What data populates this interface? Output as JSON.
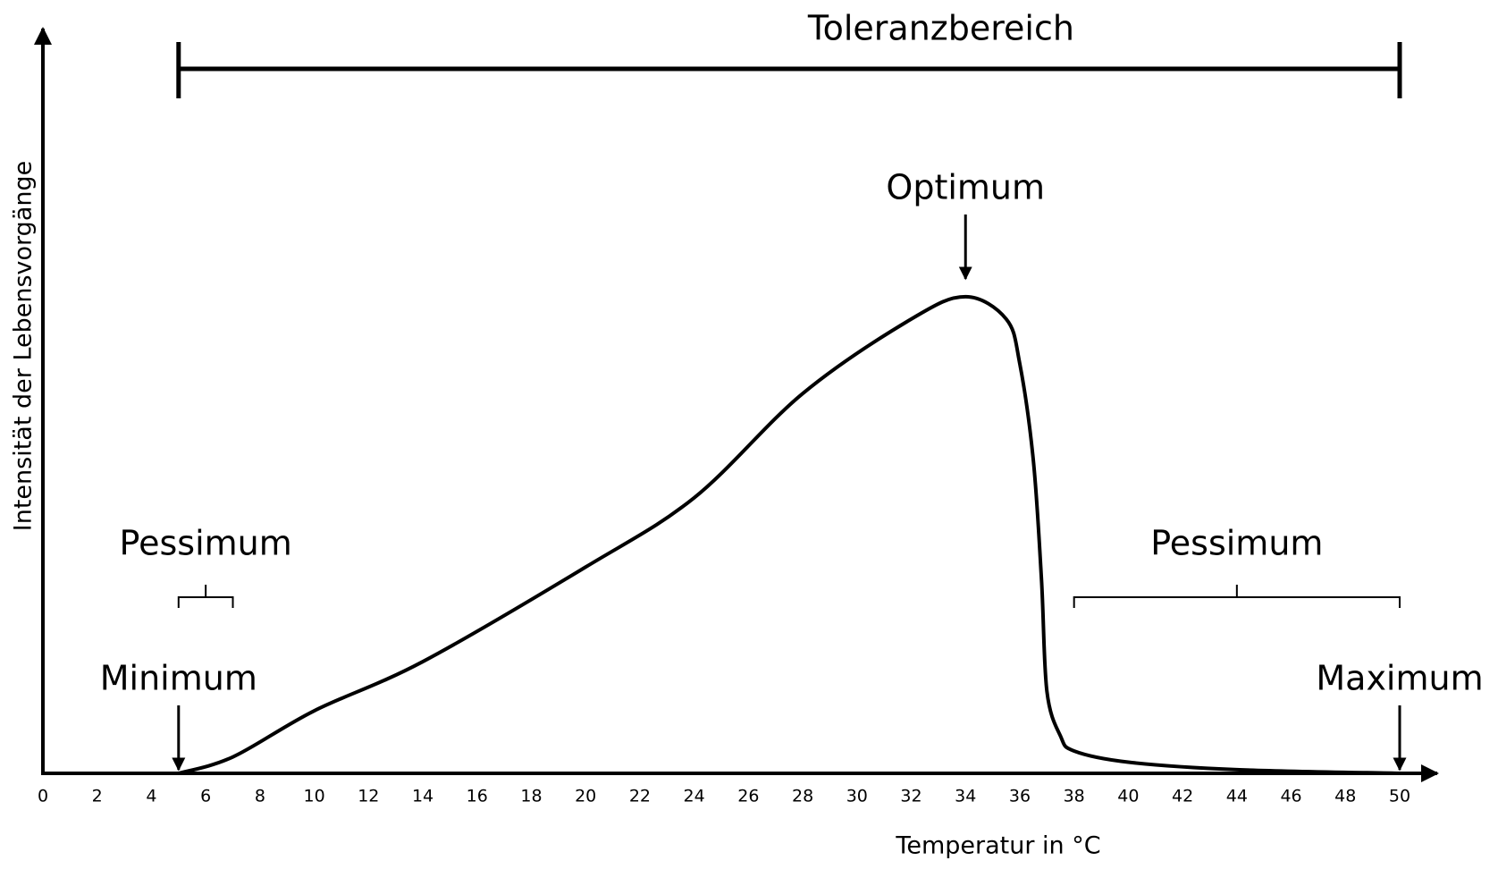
{
  "chart_data": {
    "type": "line",
    "x_label": "Temperatur in °C",
    "y_label": "Intensität der Lebensvorgänge",
    "xlim": [
      0,
      50
    ],
    "ylim": [
      0,
      100
    ],
    "xticks": [
      0,
      2,
      4,
      6,
      8,
      10,
      12,
      14,
      16,
      18,
      20,
      22,
      24,
      26,
      28,
      30,
      32,
      34,
      36,
      38,
      40,
      42,
      44,
      46,
      48,
      50
    ],
    "series": [
      {
        "color": "#000000",
        "x": [
          5,
          7,
          10,
          14,
          20,
          24,
          28,
          32,
          34,
          35.5,
          36,
          36.5,
          36.8,
          37,
          37.5,
          38,
          40,
          44,
          50
        ],
        "values": [
          0,
          2.2,
          8.4,
          15,
          27.7,
          37,
          51,
          61,
          64,
          61,
          55,
          42,
          26,
          11,
          5,
          3,
          1.5,
          0.5,
          0
        ]
      }
    ],
    "tolerance": {
      "text": "Toleranzbereich",
      "range": [
        5,
        50
      ]
    },
    "points": [
      {
        "text": "Optimum",
        "x": 34
      },
      {
        "text": "Minimum",
        "x": 5
      },
      {
        "text": "Maximum",
        "x": 50
      }
    ],
    "pessimum": [
      {
        "text": "Pessimum",
        "range": [
          5,
          7
        ]
      },
      {
        "text": "Pessimum",
        "range": [
          38,
          50
        ]
      }
    ]
  }
}
